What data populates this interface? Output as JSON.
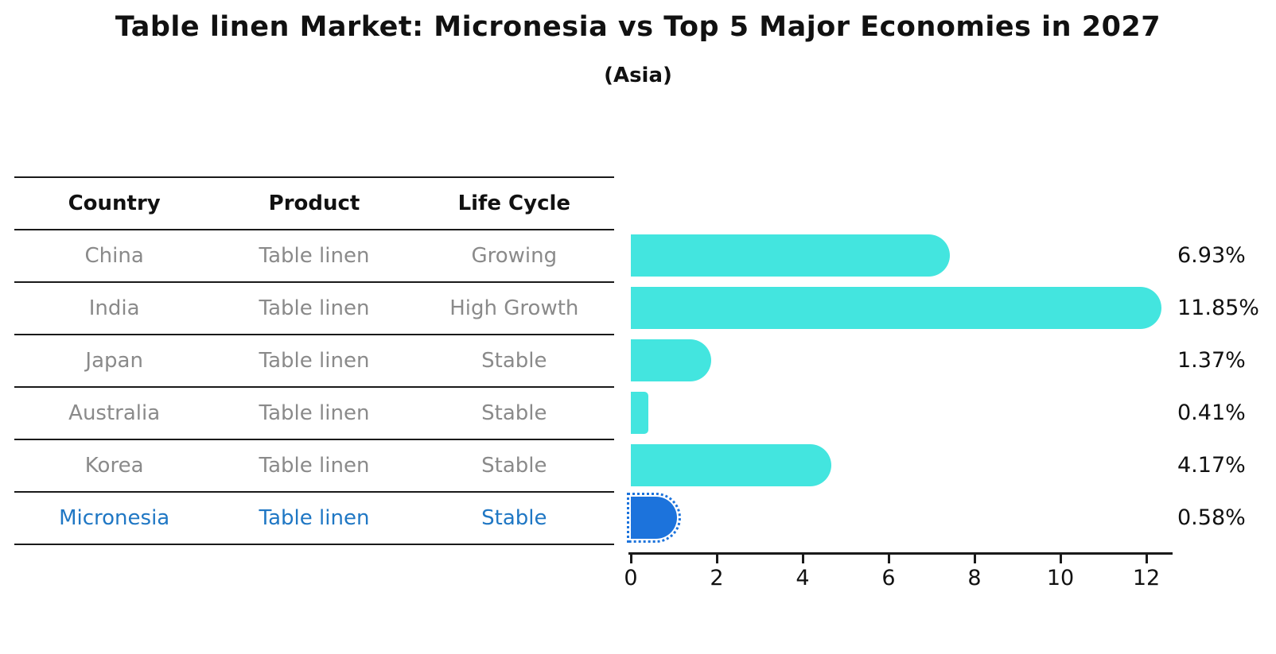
{
  "title": "Table linen Market: Micronesia vs Top 5 Major Economies in 2027",
  "subtitle": "(Asia)",
  "table": {
    "headers": [
      "Country",
      "Product",
      "Life Cycle"
    ]
  },
  "colors": {
    "bar": "#43E5DF",
    "highlight_bar": "#1C73DC",
    "highlight_text": "#1F77C4",
    "row_text": "#8a8a8a",
    "axis_text": "#111111"
  },
  "chart_data": {
    "type": "bar",
    "orientation": "horizontal",
    "title": "Table linen Market: Micronesia vs Top 5 Major Economies in 2027",
    "subtitle": "(Asia)",
    "xlabel": "",
    "ylabel": "",
    "xlim": [
      0,
      12
    ],
    "x_ticks": [
      0,
      2,
      4,
      6,
      8,
      10,
      12
    ],
    "grid": false,
    "legend": false,
    "categories": [
      "China",
      "India",
      "Japan",
      "Australia",
      "Korea",
      "Micronesia"
    ],
    "values": [
      6.93,
      11.85,
      1.37,
      0.41,
      4.17,
      0.58
    ],
    "rows": [
      {
        "country": "China",
        "product": "Table linen",
        "life_cycle": "Growing",
        "value": 6.93,
        "value_label": "6.93%",
        "highlight": false
      },
      {
        "country": "India",
        "product": "Table linen",
        "life_cycle": "High Growth",
        "value": 11.85,
        "value_label": "11.85%",
        "highlight": false
      },
      {
        "country": "Japan",
        "product": "Table linen",
        "life_cycle": "Stable",
        "value": 1.37,
        "value_label": "1.37%",
        "highlight": false
      },
      {
        "country": "Australia",
        "product": "Table linen",
        "life_cycle": "Stable",
        "value": 0.41,
        "value_label": "0.41%",
        "highlight": false
      },
      {
        "country": "Korea",
        "product": "Table linen",
        "life_cycle": "Stable",
        "value": 4.17,
        "value_label": "4.17%",
        "highlight": false
      },
      {
        "country": "Micronesia",
        "product": "Table linen",
        "life_cycle": "Stable",
        "value": 0.58,
        "value_label": "0.58%",
        "highlight": true
      }
    ]
  }
}
